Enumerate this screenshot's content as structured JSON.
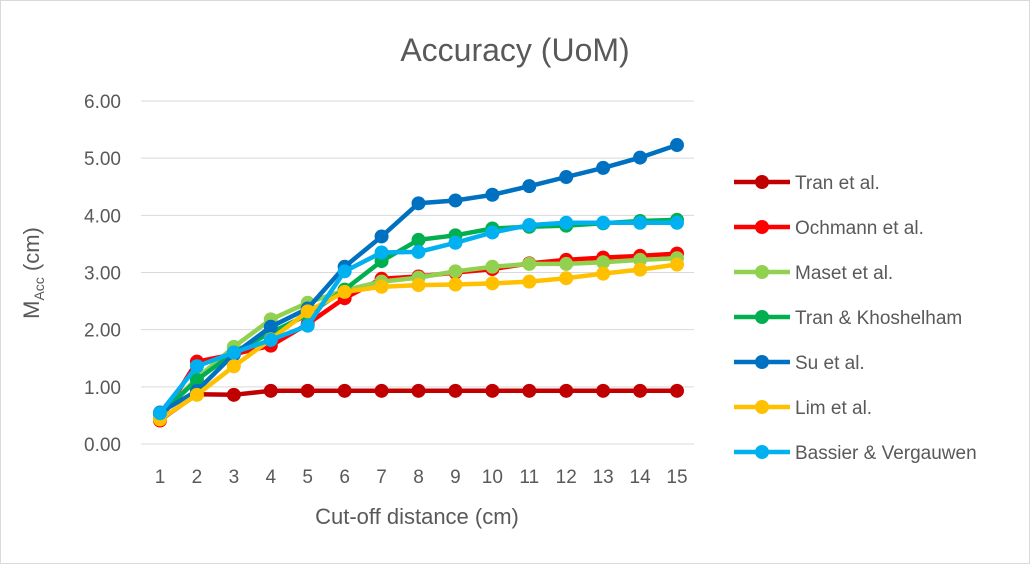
{
  "chart_data": {
    "type": "line",
    "title": "Accuracy (UoM)",
    "xlabel": "Cut-off distance (cm)",
    "ylabel": {
      "main": "M",
      "sub": "Acc",
      "suffix": " (cm)"
    },
    "x": [
      1,
      2,
      3,
      4,
      5,
      6,
      7,
      8,
      9,
      10,
      11,
      12,
      13,
      14,
      15
    ],
    "ylim": [
      0,
      6
    ],
    "yticks": [
      "0.00",
      "1.00",
      "2.00",
      "3.00",
      "4.00",
      "5.00",
      "6.00"
    ],
    "grid": true,
    "legend_position": "right",
    "series": [
      {
        "name": "Tran et al.",
        "color": "#c00000",
        "values": [
          0.42,
          0.87,
          0.86,
          0.93,
          0.93,
          0.93,
          0.93,
          0.93,
          0.93,
          0.93,
          0.93,
          0.93,
          0.93,
          0.93,
          0.93
        ]
      },
      {
        "name": "Ochmann et al.",
        "color": "#ff0000",
        "values": [
          0.41,
          1.44,
          1.57,
          1.72,
          2.1,
          2.55,
          2.89,
          2.93,
          3.0,
          3.06,
          3.16,
          3.22,
          3.26,
          3.29,
          3.33
        ]
      },
      {
        "name": "Maset et al.",
        "color": "#92d050",
        "values": [
          0.5,
          1.15,
          1.7,
          2.18,
          2.47,
          2.69,
          2.84,
          2.91,
          3.02,
          3.1,
          3.15,
          3.15,
          3.18,
          3.22,
          3.25
        ]
      },
      {
        "name": "Tran & Khoshelham",
        "color": "#00b050",
        "values": [
          0.52,
          1.12,
          1.6,
          1.95,
          2.26,
          2.7,
          3.2,
          3.57,
          3.65,
          3.77,
          3.8,
          3.82,
          3.86,
          3.9,
          3.92
        ]
      },
      {
        "name": "Su et al.",
        "color": "#0070c0",
        "values": [
          0.55,
          0.93,
          1.57,
          2.05,
          2.37,
          3.1,
          3.63,
          4.21,
          4.26,
          4.36,
          4.51,
          4.67,
          4.83,
          5.01,
          5.23
        ]
      },
      {
        "name": "Lim et al.",
        "color": "#ffc000",
        "values": [
          0.43,
          0.86,
          1.36,
          1.83,
          2.32,
          2.66,
          2.75,
          2.78,
          2.79,
          2.81,
          2.84,
          2.9,
          2.98,
          3.05,
          3.14
        ]
      },
      {
        "name": "Bassier & Vergauwen",
        "color": "#00b0f0",
        "values": [
          0.54,
          1.36,
          1.6,
          1.82,
          2.07,
          3.02,
          3.35,
          3.36,
          3.52,
          3.7,
          3.83,
          3.87,
          3.87,
          3.87,
          3.87
        ]
      }
    ]
  }
}
